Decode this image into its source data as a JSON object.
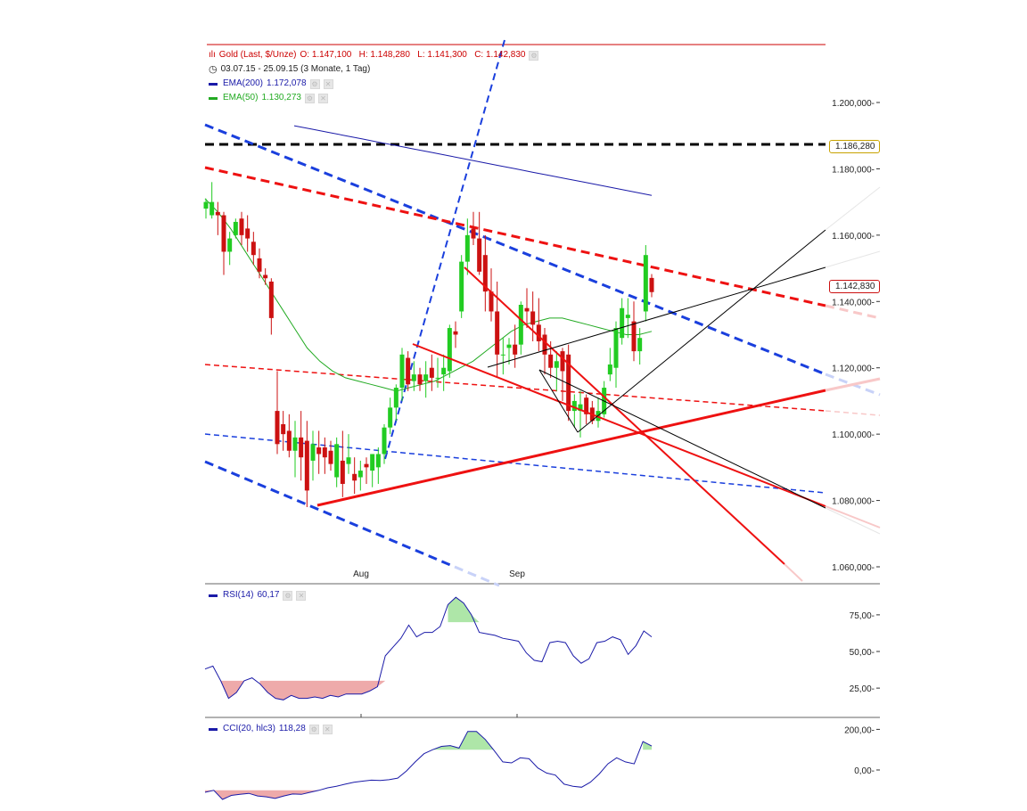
{
  "header": {
    "instrument": "Gold (Last, $/Unze)",
    "ohlc": "O: 1.147,100   H: 1.148,280   L: 1.141,300   C: 1.142,830",
    "period": "03.07.15 - 25.09.15 (3 Monate, 1 Tag)",
    "ema200_label": "EMA(200)",
    "ema200_value": "1.172,078",
    "ema50_label": "EMA(50)",
    "ema50_value": "1.130,273",
    "rsi_label": "RSI(14)",
    "rsi_value": "60,17",
    "cci_label": "CCI(20, hlc3)",
    "cci_value": "118,28"
  },
  "price_tags": {
    "resistance": "1.186,280",
    "last": "1.142,830"
  },
  "colors": {
    "up": "#22cc22",
    "down": "#cc1111",
    "ema200": "#1a1aa8",
    "ema50": "#22aa22",
    "trend_blue": "#1a3fdd",
    "trend_red": "#ee1111",
    "title_red": "#cc0000"
  },
  "chart_data": [
    {
      "type": "candlestick",
      "title": "Gold (Last, $/Unze)",
      "x_ticks": [
        "Aug",
        "Sep"
      ],
      "y_ticks": [
        "1.200,000",
        "1.180,000",
        "1.160,000",
        "1.140,000",
        "1.120,000",
        "1.100,000",
        "1.080,000",
        "1.060,000"
      ],
      "ylim": [
        1053,
        1215
      ],
      "candles": [
        {
          "o": 1168,
          "h": 1171,
          "l": 1165,
          "c": 1170
        },
        {
          "o": 1166,
          "h": 1176,
          "l": 1165,
          "c": 1170
        },
        {
          "o": 1167,
          "h": 1170,
          "l": 1160,
          "c": 1166
        },
        {
          "o": 1166,
          "h": 1167,
          "l": 1148,
          "c": 1155
        },
        {
          "o": 1155,
          "h": 1161,
          "l": 1151,
          "c": 1159
        },
        {
          "o": 1160,
          "h": 1165,
          "l": 1159,
          "c": 1164
        },
        {
          "o": 1165,
          "h": 1167,
          "l": 1157,
          "c": 1160
        },
        {
          "o": 1162,
          "h": 1166,
          "l": 1155,
          "c": 1159
        },
        {
          "o": 1158,
          "h": 1161,
          "l": 1151,
          "c": 1154
        },
        {
          "o": 1153,
          "h": 1156,
          "l": 1147,
          "c": 1149
        },
        {
          "o": 1148,
          "h": 1150,
          "l": 1145,
          "c": 1147
        },
        {
          "o": 1146,
          "h": 1147,
          "l": 1130,
          "c": 1135
        },
        {
          "o": 1107,
          "h": 1119,
          "l": 1094,
          "c": 1097
        },
        {
          "o": 1103,
          "h": 1107,
          "l": 1095,
          "c": 1100
        },
        {
          "o": 1101,
          "h": 1106,
          "l": 1093,
          "c": 1095
        },
        {
          "o": 1095,
          "h": 1104,
          "l": 1087,
          "c": 1099
        },
        {
          "o": 1099,
          "h": 1107,
          "l": 1086,
          "c": 1093
        },
        {
          "o": 1098,
          "h": 1104,
          "l": 1078,
          "c": 1083
        },
        {
          "o": 1092,
          "h": 1101,
          "l": 1086,
          "c": 1097
        },
        {
          "o": 1096,
          "h": 1101,
          "l": 1088,
          "c": 1094
        },
        {
          "o": 1096,
          "h": 1099,
          "l": 1088,
          "c": 1093
        },
        {
          "o": 1095,
          "h": 1098,
          "l": 1089,
          "c": 1091
        },
        {
          "o": 1087,
          "h": 1099,
          "l": 1084,
          "c": 1097
        },
        {
          "o": 1092,
          "h": 1101,
          "l": 1081,
          "c": 1085
        },
        {
          "o": 1091,
          "h": 1100,
          "l": 1088,
          "c": 1093
        },
        {
          "o": 1088,
          "h": 1093,
          "l": 1082,
          "c": 1086
        },
        {
          "o": 1087,
          "h": 1092,
          "l": 1083,
          "c": 1089
        },
        {
          "o": 1091,
          "h": 1093,
          "l": 1085,
          "c": 1090
        },
        {
          "o": 1089,
          "h": 1094,
          "l": 1084,
          "c": 1094
        },
        {
          "o": 1090,
          "h": 1096,
          "l": 1085,
          "c": 1094
        },
        {
          "o": 1094,
          "h": 1103,
          "l": 1091,
          "c": 1102
        },
        {
          "o": 1102,
          "h": 1111,
          "l": 1100,
          "c": 1108
        },
        {
          "o": 1108,
          "h": 1115,
          "l": 1104,
          "c": 1114
        },
        {
          "o": 1114,
          "h": 1126,
          "l": 1110,
          "c": 1124
        },
        {
          "o": 1123,
          "h": 1125,
          "l": 1113,
          "c": 1115
        },
        {
          "o": 1116,
          "h": 1122,
          "l": 1113,
          "c": 1118
        },
        {
          "o": 1118,
          "h": 1120,
          "l": 1113,
          "c": 1115
        },
        {
          "o": 1116,
          "h": 1122,
          "l": 1111,
          "c": 1118
        },
        {
          "o": 1120,
          "h": 1124,
          "l": 1113,
          "c": 1117
        },
        {
          "o": 1117,
          "h": 1123,
          "l": 1114,
          "c": 1117
        },
        {
          "o": 1118,
          "h": 1124,
          "l": 1113,
          "c": 1120
        },
        {
          "o": 1119,
          "h": 1133,
          "l": 1117,
          "c": 1132
        },
        {
          "o": 1131,
          "h": 1134,
          "l": 1126,
          "c": 1130
        },
        {
          "o": 1137,
          "h": 1154,
          "l": 1135,
          "c": 1152
        },
        {
          "o": 1152,
          "h": 1165,
          "l": 1148,
          "c": 1160
        },
        {
          "o": 1162,
          "h": 1167,
          "l": 1157,
          "c": 1159
        },
        {
          "o": 1159,
          "h": 1167,
          "l": 1148,
          "c": 1149
        },
        {
          "o": 1154,
          "h": 1160,
          "l": 1137,
          "c": 1143
        },
        {
          "o": 1143,
          "h": 1150,
          "l": 1134,
          "c": 1137
        },
        {
          "o": 1137,
          "h": 1146,
          "l": 1117,
          "c": 1124
        },
        {
          "o": 1124,
          "h": 1129,
          "l": 1118,
          "c": 1124
        },
        {
          "o": 1126,
          "h": 1129,
          "l": 1121,
          "c": 1127
        },
        {
          "o": 1127,
          "h": 1133,
          "l": 1120,
          "c": 1124
        },
        {
          "o": 1127,
          "h": 1140,
          "l": 1124,
          "c": 1139
        },
        {
          "o": 1138,
          "h": 1144,
          "l": 1132,
          "c": 1137
        },
        {
          "o": 1137,
          "h": 1143,
          "l": 1128,
          "c": 1133
        },
        {
          "o": 1133,
          "h": 1141,
          "l": 1125,
          "c": 1128
        },
        {
          "o": 1130,
          "h": 1132,
          "l": 1118,
          "c": 1124
        },
        {
          "o": 1124,
          "h": 1128,
          "l": 1117,
          "c": 1120
        },
        {
          "o": 1120,
          "h": 1125,
          "l": 1113,
          "c": 1122
        },
        {
          "o": 1125,
          "h": 1126,
          "l": 1110,
          "c": 1119
        },
        {
          "o": 1124,
          "h": 1127,
          "l": 1104,
          "c": 1107
        },
        {
          "o": 1107,
          "h": 1112,
          "l": 1102,
          "c": 1110
        },
        {
          "o": 1107,
          "h": 1113,
          "l": 1099,
          "c": 1109
        },
        {
          "o": 1111,
          "h": 1112,
          "l": 1103,
          "c": 1106
        },
        {
          "o": 1108,
          "h": 1110,
          "l": 1103,
          "c": 1104
        },
        {
          "o": 1104,
          "h": 1111,
          "l": 1102,
          "c": 1107
        },
        {
          "o": 1106,
          "h": 1116,
          "l": 1105,
          "c": 1114
        },
        {
          "o": 1118,
          "h": 1126,
          "l": 1116,
          "c": 1121
        },
        {
          "o": 1120,
          "h": 1134,
          "l": 1114,
          "c": 1132
        },
        {
          "o": 1129,
          "h": 1141,
          "l": 1127,
          "c": 1138
        },
        {
          "o": 1135,
          "h": 1141,
          "l": 1129,
          "c": 1136
        },
        {
          "o": 1134,
          "h": 1140,
          "l": 1122,
          "c": 1125
        },
        {
          "o": 1125,
          "h": 1132,
          "l": 1121,
          "c": 1129
        },
        {
          "o": 1137,
          "h": 1157,
          "l": 1134,
          "c": 1154
        },
        {
          "o": 1147.1,
          "h": 1148.28,
          "l": 1141.3,
          "c": 1142.83
        }
      ],
      "ema200": [
        1193,
        1192,
        1191,
        1190,
        1189,
        1188,
        1187,
        1186,
        1185,
        1184,
        1183,
        1182,
        1181,
        1180,
        1179,
        1178,
        1177,
        1176,
        1175,
        1174,
        1173,
        1172
      ],
      "ema50": [
        1171,
        1167,
        1162,
        1156,
        1150,
        1144,
        1138,
        1132,
        1126,
        1122,
        1119,
        1117,
        1116,
        1115,
        1114,
        1113,
        1114,
        1115,
        1116,
        1118,
        1120,
        1122,
        1125,
        1128,
        1131,
        1133,
        1134,
        1135,
        1135,
        1134,
        1133,
        1132,
        1131,
        1130,
        1130,
        1131
      ],
      "resistance_level": 1186.28,
      "last_price": 1142.83
    },
    {
      "type": "line",
      "title": "RSI(14)",
      "y_ticks": [
        "75,00",
        "50,00",
        "25,00"
      ],
      "ylim": [
        5,
        95
      ],
      "oversold": 30,
      "overbought": 70,
      "values": [
        38,
        40,
        30,
        18,
        22,
        30,
        32,
        28,
        22,
        18,
        17,
        20,
        18,
        18,
        19,
        18,
        20,
        19,
        21,
        21,
        21,
        23,
        26,
        47,
        53,
        59,
        68,
        60,
        63,
        63,
        67,
        82,
        87,
        83,
        75,
        63,
        62,
        61,
        59,
        58,
        57,
        49,
        44,
        43,
        56,
        57,
        56,
        47,
        42,
        45,
        56,
        57,
        60,
        58,
        48,
        54,
        64,
        60
      ]
    },
    {
      "type": "line",
      "title": "CCI(20, hlc3)",
      "y_ticks": [
        "200,00",
        "0,00"
      ],
      "ylim": [
        -180,
        250
      ],
      "threshold_high": 100,
      "threshold_low": -100,
      "values": [
        -110,
        -100,
        -145,
        -125,
        -120,
        -115,
        -128,
        -132,
        -140,
        -128,
        -118,
        -120,
        -110,
        -100,
        -88,
        -80,
        -70,
        -60,
        -55,
        -50,
        -52,
        -48,
        -40,
        -5,
        40,
        80,
        100,
        116,
        120,
        108,
        190,
        190,
        150,
        96,
        40,
        35,
        60,
        55,
        10,
        -15,
        -25,
        -70,
        -80,
        -85,
        -60,
        -20,
        30,
        60,
        40,
        30,
        140,
        118
      ]
    }
  ]
}
